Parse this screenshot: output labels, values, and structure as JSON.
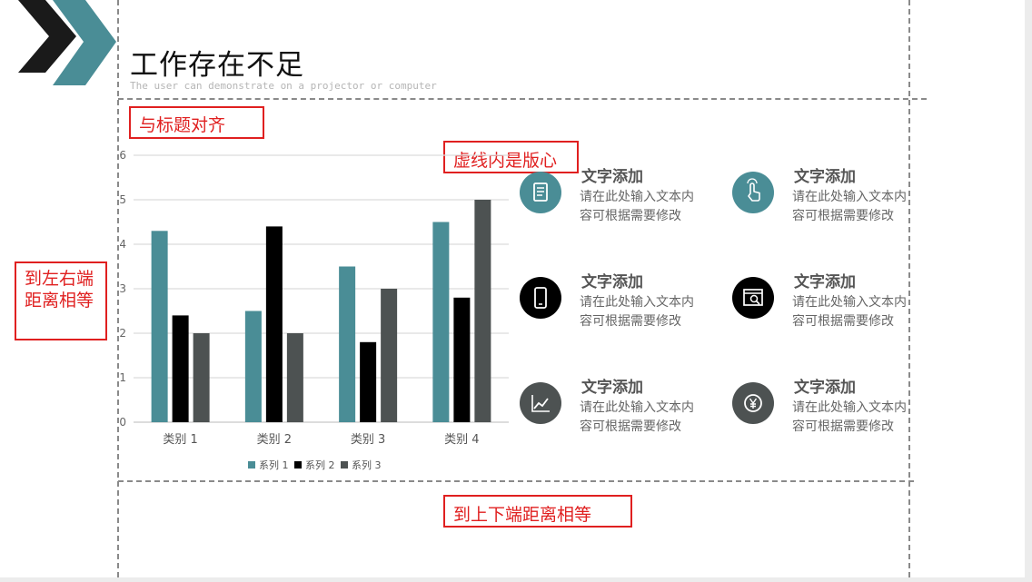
{
  "slide": {
    "title": "工作存在不足",
    "subtitle": "The user can demonstrate on a projector or computer"
  },
  "annotations": {
    "align_title": "与标题对齐",
    "safe_area": "虚线内是版心",
    "lr_equal": "到左右端距离相等",
    "tb_equal": "到上下端距离相等"
  },
  "colors": {
    "teal": "#4a8d96",
    "black": "#000000",
    "dark_gray": "#4d5252",
    "annotation_red": "#e02020"
  },
  "chart_data": {
    "type": "bar",
    "categories": [
      "类别 1",
      "类别 2",
      "类别 3",
      "类别 4"
    ],
    "series": [
      {
        "name": "系列 1",
        "values": [
          4.3,
          2.5,
          3.5,
          4.5
        ],
        "color": "#4a8d96"
      },
      {
        "name": "系列 2",
        "values": [
          2.4,
          4.4,
          1.8,
          2.8
        ],
        "color": "#000000"
      },
      {
        "name": "系列 3",
        "values": [
          2.0,
          2.0,
          3.0,
          5.0
        ],
        "color": "#4d5252"
      }
    ],
    "ylim": [
      0,
      6
    ],
    "yticks": [
      "0",
      "1",
      "2",
      "3",
      "4",
      "5",
      "6"
    ],
    "grid": true,
    "legend_position": "bottom"
  },
  "features": [
    {
      "title": "文字添加",
      "desc": "请在此处输入文本内容可根据需要修改",
      "icon": "document-icon",
      "color": "#4a8d96"
    },
    {
      "title": "文字添加",
      "desc": "请在此处输入文本内容可根据需要修改",
      "icon": "touch-hand-icon",
      "color": "#4a8d96"
    },
    {
      "title": "文字添加",
      "desc": "请在此处输入文本内容可根据需要修改",
      "icon": "mobile-phone-icon",
      "color": "#000000"
    },
    {
      "title": "文字添加",
      "desc": "请在此处输入文本内容可根据需要修改",
      "icon": "web-search-icon",
      "color": "#000000"
    },
    {
      "title": "文字添加",
      "desc": "请在此处输入文本内容可根据需要修改",
      "icon": "trend-chart-icon",
      "color": "#4d5252"
    },
    {
      "title": "文字添加",
      "desc": "请在此处输入文本内容可根据需要修改",
      "icon": "yen-coin-icon",
      "color": "#4d5252"
    }
  ]
}
